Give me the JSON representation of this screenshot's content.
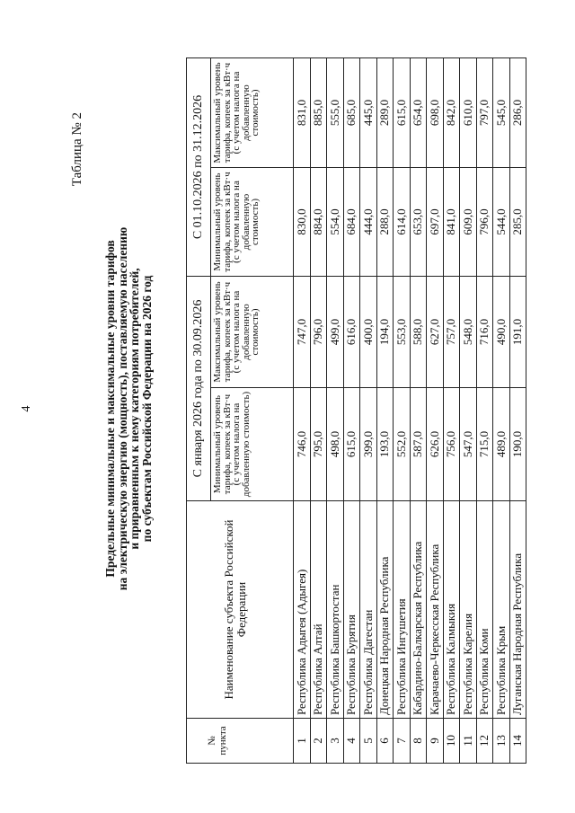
{
  "page_number": "4",
  "table_label": "Таблица № 2",
  "title_lines": [
    "Предельные минимальные и максимальные уровни тарифов",
    "на электрическую энергию (мощность), поставляемую населению",
    "и приравненным к нему категориям потребителей,",
    "по субъектам Российской Федерации на 2026 год"
  ],
  "headers": {
    "number": "№ пункта",
    "name": "Наименование субъекта Российской Федерации",
    "period1": "С января 2026 года по 30.09.2026",
    "period2": "С 01.10.2026 по 31.12.2026",
    "min": "Минимальный уровень тарифа, копеек за кВт·ч (с учетом налога на добавленную стоимость)",
    "max": "Максимальный уровень тарифа, копеек за кВт·ч (с учетом налога на добавленную стоимость)"
  },
  "rows": [
    {
      "n": "1",
      "name": "Республика Адыгея (Адыгея)",
      "min1": "746,0",
      "max1": "747,0",
      "min2": "830,0",
      "max2": "831,0"
    },
    {
      "n": "2",
      "name": "Республика Алтай",
      "min1": "795,0",
      "max1": "796,0",
      "min2": "884,0",
      "max2": "885,0"
    },
    {
      "n": "3",
      "name": "Республика Башкортостан",
      "min1": "498,0",
      "max1": "499,0",
      "min2": "554,0",
      "max2": "555,0"
    },
    {
      "n": "4",
      "name": "Республика Бурятия",
      "min1": "615,0",
      "max1": "616,0",
      "min2": "684,0",
      "max2": "685,0"
    },
    {
      "n": "5",
      "name": "Республика Дагестан",
      "min1": "399,0",
      "max1": "400,0",
      "min2": "444,0",
      "max2": "445,0"
    },
    {
      "n": "6",
      "name": "Донецкая Народная Республика",
      "min1": "193,0",
      "max1": "194,0",
      "min2": "288,0",
      "max2": "289,0"
    },
    {
      "n": "7",
      "name": "Республика Ингушетия",
      "min1": "552,0",
      "max1": "553,0",
      "min2": "614,0",
      "max2": "615,0"
    },
    {
      "n": "8",
      "name": "Кабардино-Балкарская Республика",
      "min1": "587,0",
      "max1": "588,0",
      "min2": "653,0",
      "max2": "654,0"
    },
    {
      "n": "9",
      "name": "Карачаево-Черкесская Республика",
      "min1": "626,0",
      "max1": "627,0",
      "min2": "697,0",
      "max2": "698,0"
    },
    {
      "n": "10",
      "name": "Республика Калмыкия",
      "min1": "756,0",
      "max1": "757,0",
      "min2": "841,0",
      "max2": "842,0"
    },
    {
      "n": "11",
      "name": "Республика Карелия",
      "min1": "547,0",
      "max1": "548,0",
      "min2": "609,0",
      "max2": "610,0"
    },
    {
      "n": "12",
      "name": "Республика Коми",
      "min1": "715,0",
      "max1": "716,0",
      "min2": "796,0",
      "max2": "797,0"
    },
    {
      "n": "13",
      "name": "Республика Крым",
      "min1": "489,0",
      "max1": "490,0",
      "min2": "544,0",
      "max2": "545,0"
    },
    {
      "n": "14",
      "name": "Луганская Народная Республика",
      "min1": "190,0",
      "max1": "191,0",
      "min2": "285,0",
      "max2": "286,0"
    }
  ]
}
